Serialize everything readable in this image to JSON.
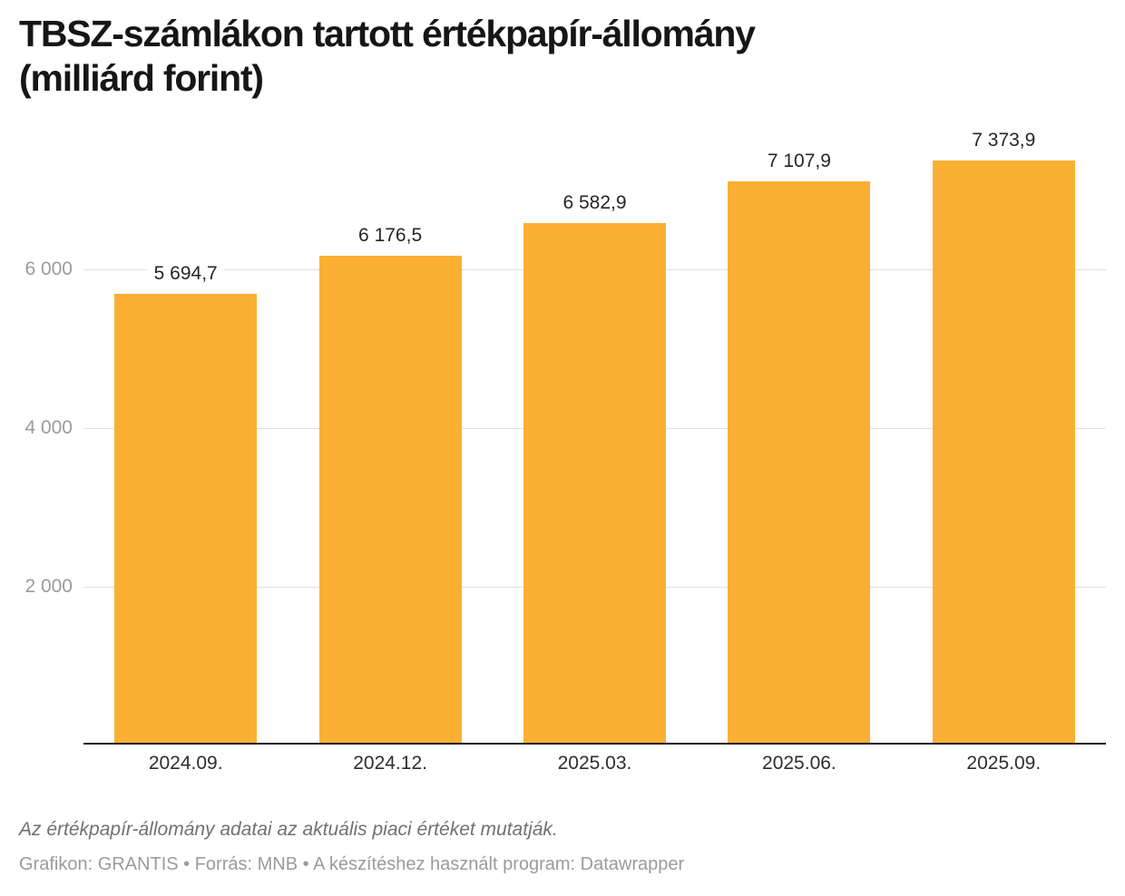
{
  "header": {
    "title_line1": "TBSZ-számlákon tartott értékpapír-állomány",
    "title_line2": "(milliárd forint)"
  },
  "chart_data": {
    "type": "bar",
    "title": "TBSZ-számlákon tartott értékpapír-állomány (milliárd forint)",
    "categories": [
      "2024.09.",
      "2024.12.",
      "2025.03.",
      "2025.06.",
      "2025.09."
    ],
    "values": [
      5694.7,
      6176.5,
      6582.9,
      7107.9,
      7373.9
    ],
    "value_labels": [
      "5 694,7",
      "6 176,5",
      "6 582,9",
      "7 107,9",
      "7 373,9"
    ],
    "xlabel": "",
    "ylabel": "",
    "ylim": [
      0,
      7500
    ],
    "yticks": [
      2000,
      4000,
      6000
    ],
    "ytick_labels": [
      "2 000",
      "4 000",
      "6 000"
    ],
    "grid": true,
    "legend": false
  },
  "footer": {
    "note": "Az értékpapír-állomány adatai az aktuális piaci értéket mutatják.",
    "byline": "Grafikon: GRANTIS • Forrás: MNB • A készítéshez használt program: Datawrapper"
  },
  "colors": {
    "background": "#FFFFFF",
    "bar": "#FBB034",
    "grid": "#E0E0E0",
    "axis": "#191919",
    "title": "#161616",
    "value_label": "#262626",
    "xtick": "#2E2E2E",
    "ytick": "#9B9B9B",
    "note": "#717171",
    "byline": "#9B9B9B"
  }
}
